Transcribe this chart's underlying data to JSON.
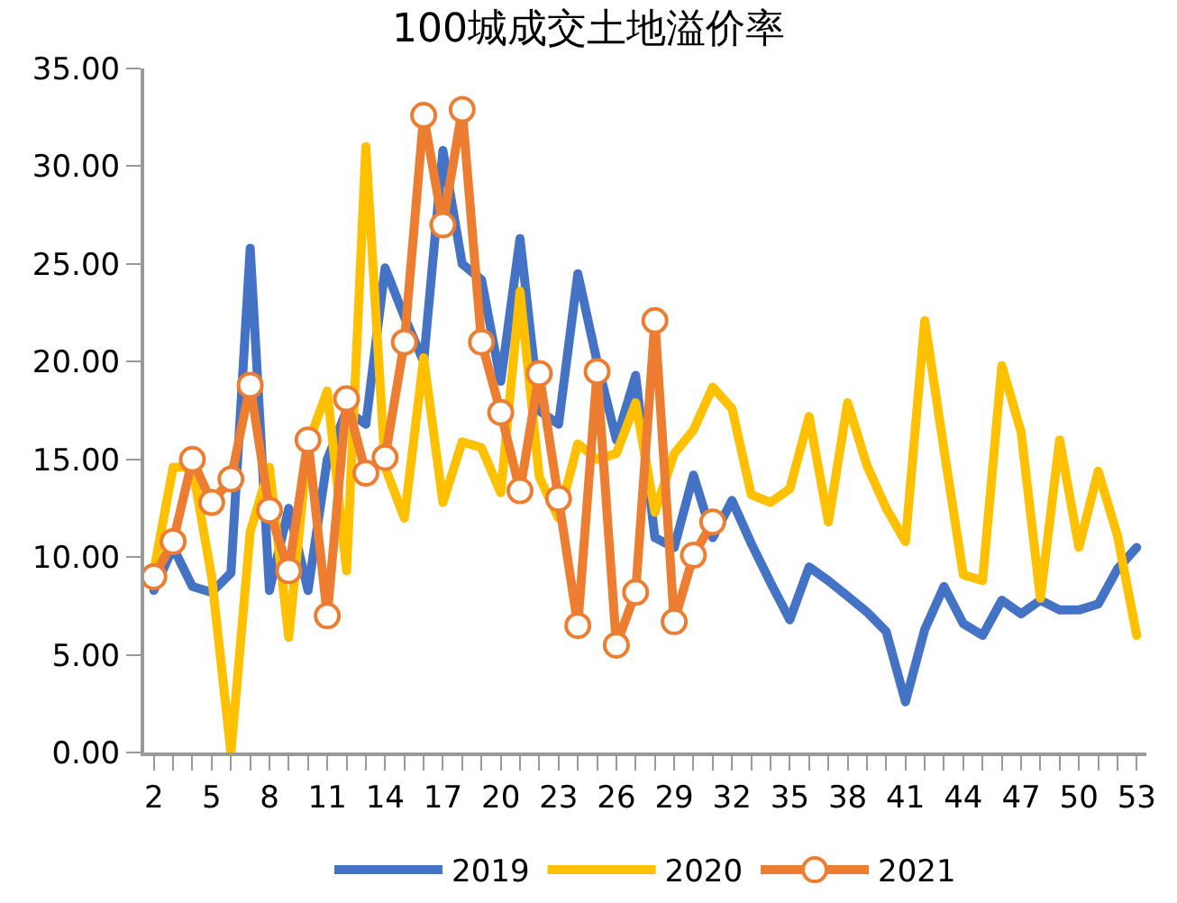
{
  "chart_data": {
    "type": "line",
    "title": "100城成交土地溢价率",
    "x": [
      2,
      3,
      4,
      5,
      6,
      7,
      8,
      9,
      10,
      11,
      12,
      13,
      14,
      15,
      16,
      17,
      18,
      19,
      20,
      21,
      22,
      23,
      24,
      25,
      26,
      27,
      28,
      29,
      30,
      31,
      32,
      33,
      34,
      35,
      36,
      37,
      38,
      39,
      40,
      41,
      42,
      43,
      44,
      45,
      46,
      47,
      48,
      49,
      50,
      51,
      52,
      53
    ],
    "series": [
      {
        "name": "2019",
        "color": "#4472c4",
        "marker": "none",
        "values": [
          8.3,
          10.5,
          8.5,
          8.2,
          9.2,
          25.8,
          8.3,
          12.5,
          8.3,
          15,
          17.5,
          16.8,
          24.8,
          22.3,
          20,
          30.8,
          25,
          24.2,
          19,
          26.3,
          17.5,
          16.8,
          24.5,
          20,
          16,
          19.3,
          11,
          10.5,
          14.2,
          11,
          12.9,
          10.7,
          8.7,
          6.8,
          9.5,
          8.8,
          8,
          7.2,
          6.2,
          2.6,
          6.3,
          8.5,
          6.6,
          6,
          7.8,
          7.1,
          7.8,
          7.3,
          7.3,
          7.6,
          9.4,
          10.5
        ]
      },
      {
        "name": "2020",
        "color": "#ffc000",
        "marker": "none",
        "values": [
          9.3,
          14.6,
          14.6,
          9,
          0,
          11.3,
          14.6,
          5.9,
          15.8,
          18.5,
          9.3,
          31,
          14.6,
          12,
          20.2,
          12.8,
          15.9,
          15.6,
          13.3,
          23.6,
          14.1,
          12,
          15.8,
          15,
          15.3,
          17.9,
          12.3,
          15.3,
          16.5,
          18.7,
          17.6,
          13.2,
          12.8,
          13.5,
          17.2,
          11.8,
          17.9,
          14.7,
          12.5,
          10.8,
          22.1,
          15.5,
          9.1,
          8.8,
          19.8,
          16.4,
          7.9,
          16,
          10.5,
          14.4,
          11.1,
          6
        ]
      },
      {
        "name": "2021",
        "color": "#ed7d31",
        "marker": "circle",
        "values": [
          9,
          10.8,
          15,
          12.8,
          14,
          18.8,
          12.4,
          9.3,
          16,
          7,
          18.1,
          14.3,
          15.1,
          21,
          32.6,
          27,
          32.9,
          21,
          17.4,
          13.4,
          19.4,
          13,
          6.5,
          19.5,
          5.5,
          8.2,
          22.1,
          6.7,
          10.1,
          11.8,
          null,
          null,
          null,
          null,
          null,
          null,
          null,
          null,
          null,
          null,
          null,
          null,
          null,
          null,
          null,
          null,
          null,
          null,
          null,
          null,
          null,
          null
        ]
      }
    ],
    "xlim": [
      1.5,
      53.5
    ],
    "xticks": [
      2,
      5,
      8,
      11,
      14,
      17,
      20,
      23,
      26,
      29,
      32,
      35,
      38,
      41,
      44,
      47,
      50,
      53
    ],
    "ylim": [
      0,
      35
    ],
    "yticks": [
      {
        "value": 0,
        "label": "0.00"
      },
      {
        "value": 5,
        "label": "5.00"
      },
      {
        "value": 10,
        "label": "10.00"
      },
      {
        "value": 15,
        "label": "15.00"
      },
      {
        "value": 20,
        "label": "20.00"
      },
      {
        "value": 25,
        "label": "25.00"
      },
      {
        "value": 30,
        "label": "30.00"
      },
      {
        "value": 35,
        "label": "35.00"
      }
    ],
    "grid": false,
    "legend": "bottom",
    "line_style": "solid"
  }
}
